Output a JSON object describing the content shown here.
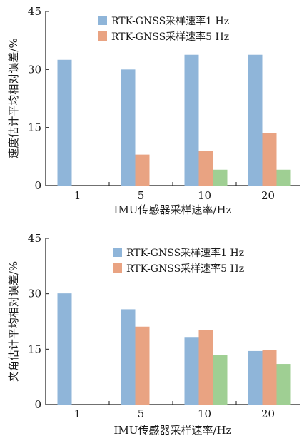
{
  "colors": {
    "rtk_1hz": "#8fb5d9",
    "rtk_5hz": "#e9a382",
    "third": "#9fcf93",
    "axis": "#1a1a1a"
  },
  "chart_data": [
    {
      "type": "bar",
      "ylabel": "速度估计平均相对误差/%",
      "xlabel": "IMU传感器采样速率/Hz",
      "categories": [
        "1",
        "5",
        "10",
        "20"
      ],
      "ylim": [
        0,
        45
      ],
      "yticks": [
        "0",
        "15",
        "30",
        "45"
      ],
      "grid": false,
      "legend_position": "top-right",
      "series": [
        {
          "name": "RTK-GNSS采样速率1 Hz",
          "color": "#8fb5d9",
          "values": [
            32.5,
            30,
            33.8,
            33.8
          ]
        },
        {
          "name": "RTK-GNSS采样速率5 Hz",
          "color": "#e9a382",
          "values": [
            0,
            8,
            9,
            13.5
          ]
        },
        {
          "name": "",
          "color": "#9fcf93",
          "values": [
            0,
            0,
            4.1,
            4.1
          ]
        }
      ]
    },
    {
      "type": "bar",
      "ylabel": "夹角估计平均相对误差/%",
      "xlabel": "IMU传感器采样速率/Hz",
      "categories": [
        "1",
        "5",
        "10",
        "20"
      ],
      "ylim": [
        0,
        45
      ],
      "yticks": [
        "0",
        "15",
        "30",
        "45"
      ],
      "grid": false,
      "legend_position": "top-right",
      "series": [
        {
          "name": "RTK-GNSS采样速率1 Hz",
          "color": "#8fb5d9",
          "values": [
            30.1,
            25.8,
            18.3,
            14.5
          ]
        },
        {
          "name": "RTK-GNSS采样速率5 Hz",
          "color": "#e9a382",
          "values": [
            0,
            21.1,
            20.1,
            14.8
          ]
        },
        {
          "name": "",
          "color": "#9fcf93",
          "values": [
            0,
            0,
            13.4,
            11
          ]
        }
      ]
    }
  ]
}
